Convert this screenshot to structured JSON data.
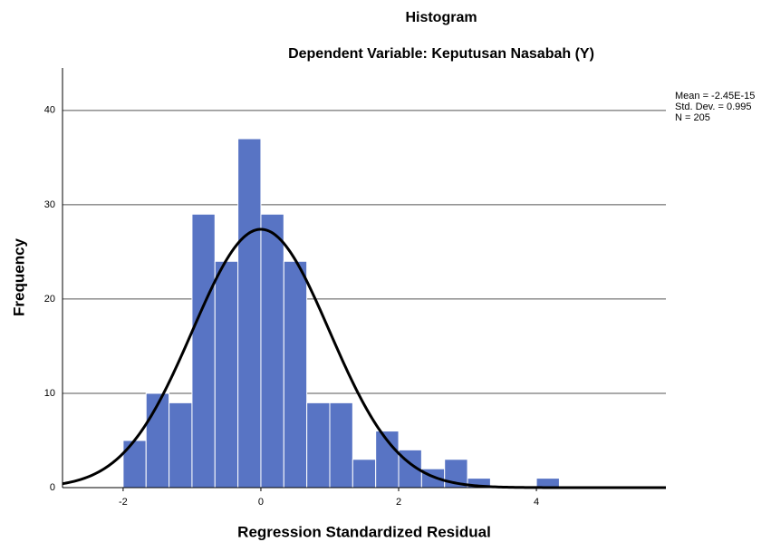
{
  "chart_data": {
    "type": "histogram",
    "title": "Histogram",
    "subtitle": "Dependent Variable: Keputusan Nasabah (Y)",
    "x_label": "Regression Standardized Residual",
    "y_label": "Frequency",
    "bins": [
      -2,
      -1.6667,
      -1.3333,
      -1,
      -0.6667,
      -0.3333,
      0,
      0.3333,
      0.6667,
      1,
      1.3333,
      1.6667,
      2,
      2.3333,
      2.6667,
      3,
      3.3333,
      3.6667,
      4,
      4.3333
    ],
    "counts": [
      5,
      10,
      9,
      29,
      24,
      37,
      29,
      24,
      9,
      9,
      3,
      6,
      4,
      2,
      3,
      1,
      0,
      0,
      1
    ],
    "color": "#5874c4",
    "curve_color": "#000000",
    "stats": [
      {
        "value": -2.45e-15,
        "label": "Mean = -2.45E-15"
      },
      {
        "value": 0.995,
        "label": "Std. Dev. = 0.995"
      },
      {
        "value": 205,
        "label": "N = 205"
      }
    ],
    "xlim": [
      -2.88,
      5.88
    ],
    "ylim": [
      0,
      44.5
    ],
    "xticks": [
      -2,
      0,
      2,
      4
    ],
    "yticks": [
      0,
      10,
      20,
      30,
      40
    ],
    "grid": true
  }
}
